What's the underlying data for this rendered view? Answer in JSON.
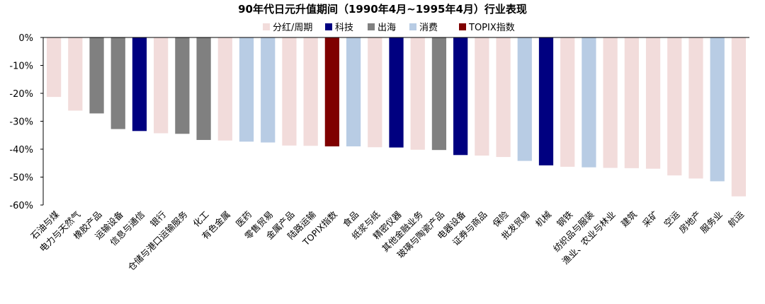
{
  "chart_data": {
    "type": "bar",
    "title": "90年代日元升值期间（1990年4月~1995年4月）行业表现",
    "xlabel": "",
    "ylabel": "",
    "ylim": [
      -60,
      0
    ],
    "y_ticks": [
      "0%",
      "-10%",
      "-20%",
      "-30%",
      "-40%",
      "-50%",
      "-60%"
    ],
    "y_tick_values": [
      0,
      -10,
      -20,
      -30,
      -40,
      -50,
      -60
    ],
    "grid": false,
    "legend_position": "top",
    "groups": [
      {
        "name": "分红/周期",
        "color": "#F2DCDB"
      },
      {
        "name": "科技",
        "color": "#000080"
      },
      {
        "name": "出海",
        "color": "#808080"
      },
      {
        "name": "消费",
        "color": "#B8CCE4"
      },
      {
        "name": "TOPIX指数",
        "color": "#7F0000"
      }
    ],
    "categories": [
      "石油与煤",
      "电力与天然气",
      "橡胶产品",
      "运输设备",
      "信息与通信",
      "银行",
      "仓储与港口运输服务",
      "化工",
      "有色金属",
      "医药",
      "零售贸易",
      "金属产品",
      "陆路运输",
      "TOPIX指数",
      "食品",
      "纸浆与纸",
      "精密仪器",
      "其他金融业务",
      "玻璃与陶瓷产品",
      "电器设备",
      "证券与商品",
      "保险",
      "批发贸易",
      "机械",
      "钢铁",
      "纺织品与服装",
      "渔业、农业与林业",
      "建筑",
      "采矿",
      "空运",
      "房地产",
      "服务业",
      "航运"
    ],
    "values": [
      -21.3,
      -26.2,
      -27.2,
      -32.8,
      -33.5,
      -34.3,
      -34.5,
      -36.7,
      -36.9,
      -37.3,
      -37.6,
      -38.7,
      -38.8,
      -39.0,
      -39.0,
      -39.3,
      -39.4,
      -40.2,
      -40.3,
      -42.1,
      -42.3,
      -42.8,
      -44.2,
      -45.8,
      -46.3,
      -46.5,
      -46.7,
      -46.8,
      -47.0,
      -49.4,
      -50.5,
      -51.5,
      -56.9
    ],
    "value_groups": [
      "分红/周期",
      "分红/周期",
      "出海",
      "出海",
      "科技",
      "分红/周期",
      "出海",
      "出海",
      "分红/周期",
      "消费",
      "消费",
      "分红/周期",
      "分红/周期",
      "TOPIX指数",
      "消费",
      "分红/周期",
      "科技",
      "分红/周期",
      "出海",
      "科技",
      "分红/周期",
      "分红/周期",
      "消费",
      "科技",
      "分红/周期",
      "消费",
      "分红/周期",
      "分红/周期",
      "分红/周期",
      "分红/周期",
      "分红/周期",
      "消费",
      "分红/周期"
    ]
  }
}
